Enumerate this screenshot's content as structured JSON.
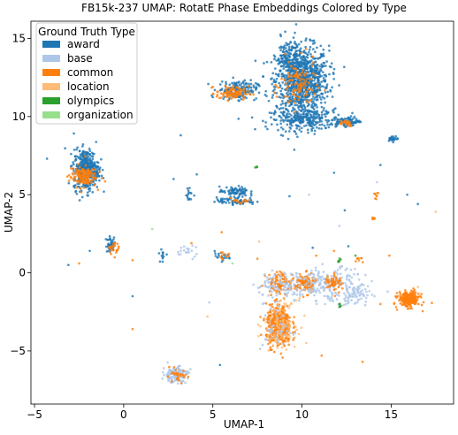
{
  "chart_data": {
    "type": "scatter",
    "title": "FB15k-237 UMAP: RotatE Phase Embeddings Colored by Type",
    "xlabel": "UMAP-1",
    "ylabel": "UMAP-2",
    "xlim": [
      -5.2,
      18.5
    ],
    "ylim": [
      -8.4,
      16.1
    ],
    "xticks": [
      -5,
      0,
      5,
      10,
      15
    ],
    "yticks": [
      -5,
      0,
      5,
      10,
      15
    ],
    "grid": false,
    "legend": {
      "title": "Ground Truth Type",
      "placement": "top-left",
      "entries": [
        "award",
        "base",
        "common",
        "location",
        "olympics",
        "organization"
      ]
    },
    "colors": {
      "award": "#1f77b4",
      "base": "#aec7e8",
      "common": "#ff7f0e",
      "location": "#ffbb78",
      "olympics": "#2ca02c",
      "organization": "#98df8a"
    },
    "clusters": [
      {
        "name": "award",
        "cx": 10.0,
        "cy": 12.3,
        "sx": 0.75,
        "sy": 1.1,
        "n": 900
      },
      {
        "name": "award",
        "cx": 10.2,
        "cy": 9.8,
        "sx": 1.0,
        "sy": 0.35,
        "n": 260
      },
      {
        "name": "award",
        "cx": 9.2,
        "cy": 13.8,
        "sx": 0.35,
        "sy": 0.6,
        "n": 110
      },
      {
        "name": "common",
        "cx": 9.8,
        "cy": 12.0,
        "sx": 0.5,
        "sy": 0.8,
        "n": 110
      },
      {
        "name": "award",
        "cx": 6.4,
        "cy": 11.7,
        "sx": 0.55,
        "sy": 0.3,
        "n": 160
      },
      {
        "name": "common",
        "cx": 6.1,
        "cy": 11.5,
        "sx": 0.45,
        "sy": 0.22,
        "n": 90
      },
      {
        "name": "award",
        "cx": 12.6,
        "cy": 9.7,
        "sx": 0.35,
        "sy": 0.15,
        "n": 70
      },
      {
        "name": "common",
        "cx": 12.4,
        "cy": 9.6,
        "sx": 0.25,
        "sy": 0.12,
        "n": 25
      },
      {
        "name": "award",
        "cx": -2.1,
        "cy": 6.6,
        "sx": 0.35,
        "sy": 0.65,
        "n": 420
      },
      {
        "name": "common",
        "cx": -2.3,
        "cy": 6.2,
        "sx": 0.38,
        "sy": 0.35,
        "n": 140
      },
      {
        "name": "award",
        "cx": 6.2,
        "cy": 5.2,
        "sx": 0.4,
        "sy": 0.15,
        "n": 70
      },
      {
        "name": "award",
        "cx": 6.3,
        "cy": 4.6,
        "sx": 0.55,
        "sy": 0.12,
        "n": 70
      },
      {
        "name": "common",
        "cx": 6.5,
        "cy": 4.6,
        "sx": 0.35,
        "sy": 0.12,
        "n": 15
      },
      {
        "name": "award",
        "cx": 15.1,
        "cy": 8.6,
        "sx": 0.15,
        "sy": 0.08,
        "n": 25
      },
      {
        "name": "award",
        "cx": 3.7,
        "cy": 5.0,
        "sx": 0.1,
        "sy": 0.22,
        "n": 15
      },
      {
        "name": "award",
        "cx": -0.7,
        "cy": 1.8,
        "sx": 0.15,
        "sy": 0.25,
        "n": 45
      },
      {
        "name": "common",
        "cx": -0.6,
        "cy": 1.6,
        "sx": 0.15,
        "sy": 0.2,
        "n": 25
      },
      {
        "name": "common",
        "cx": 8.7,
        "cy": -3.4,
        "sx": 0.35,
        "sy": 0.65,
        "n": 420
      },
      {
        "name": "location",
        "cx": 8.8,
        "cy": -3.2,
        "sx": 0.45,
        "sy": 0.75,
        "n": 110
      },
      {
        "name": "base",
        "cx": 8.6,
        "cy": -3.5,
        "sx": 0.45,
        "sy": 0.8,
        "n": 40
      },
      {
        "name": "common",
        "cx": 16.0,
        "cy": -1.7,
        "sx": 0.3,
        "sy": 0.25,
        "n": 230
      },
      {
        "name": "common",
        "cx": 10.2,
        "cy": -0.7,
        "sx": 0.3,
        "sy": 0.3,
        "n": 120
      },
      {
        "name": "base",
        "cx": 11.6,
        "cy": -0.8,
        "sx": 0.9,
        "sy": 0.55,
        "n": 190
      },
      {
        "name": "common",
        "cx": 8.8,
        "cy": -0.6,
        "sx": 0.4,
        "sy": 0.35,
        "n": 90
      },
      {
        "name": "base",
        "cx": 9.0,
        "cy": -0.8,
        "sx": 0.8,
        "sy": 0.4,
        "n": 110
      },
      {
        "name": "common",
        "cx": 11.8,
        "cy": -0.6,
        "sx": 0.25,
        "sy": 0.3,
        "n": 50
      },
      {
        "name": "base",
        "cx": 13.0,
        "cy": -1.4,
        "sx": 0.45,
        "sy": 0.35,
        "n": 60
      },
      {
        "name": "base",
        "cx": 2.9,
        "cy": -6.5,
        "sx": 0.35,
        "sy": 0.25,
        "n": 140
      },
      {
        "name": "common",
        "cx": 3.0,
        "cy": -6.6,
        "sx": 0.3,
        "sy": 0.2,
        "n": 30
      },
      {
        "name": "common",
        "cx": 13.2,
        "cy": 0.8,
        "sx": 0.1,
        "sy": 0.1,
        "n": 8
      },
      {
        "name": "award",
        "cx": 5.4,
        "cy": 1.0,
        "sx": 0.3,
        "sy": 0.15,
        "n": 20
      },
      {
        "name": "common",
        "cx": 5.6,
        "cy": 1.1,
        "sx": 0.15,
        "sy": 0.1,
        "n": 10
      },
      {
        "name": "base",
        "cx": 3.5,
        "cy": 1.4,
        "sx": 0.35,
        "sy": 0.2,
        "n": 20
      },
      {
        "name": "olympics",
        "cx": 12.1,
        "cy": 0.7,
        "sx": 0.05,
        "sy": 0.1,
        "n": 6
      },
      {
        "name": "olympics",
        "cx": 12.1,
        "cy": -2.1,
        "sx": 0.05,
        "sy": 0.15,
        "n": 5
      },
      {
        "name": "olympics",
        "cx": 7.4,
        "cy": 6.7,
        "sx": 0.05,
        "sy": 0.1,
        "n": 4
      },
      {
        "name": "common",
        "cx": 14.2,
        "cy": 5.0,
        "sx": 0.1,
        "sy": 0.15,
        "n": 8
      },
      {
        "name": "common",
        "cx": 14.0,
        "cy": 3.5,
        "sx": 0.08,
        "sy": 0.1,
        "n": 6
      },
      {
        "name": "award",
        "cx": 2.2,
        "cy": 1.2,
        "sx": 0.1,
        "sy": 0.2,
        "n": 12
      }
    ],
    "outliers": [
      {
        "name": "award",
        "x": -4.3,
        "y": 7.3
      },
      {
        "name": "award",
        "x": 3.2,
        "y": 8.8
      },
      {
        "name": "award",
        "x": 2.8,
        "y": 6.0
      },
      {
        "name": "award",
        "x": 4.1,
        "y": 6.3
      },
      {
        "name": "award",
        "x": 11.8,
        "y": 6.4
      },
      {
        "name": "award",
        "x": 14.4,
        "y": 6.9
      },
      {
        "name": "award",
        "x": 15.9,
        "y": 5.0
      },
      {
        "name": "award",
        "x": 16.5,
        "y": 4.4
      },
      {
        "name": "award",
        "x": 12.4,
        "y": 4.0
      },
      {
        "name": "award",
        "x": 9.3,
        "y": 4.9
      },
      {
        "name": "award",
        "x": -1.9,
        "y": 1.4
      },
      {
        "name": "award",
        "x": -3.1,
        "y": 0.5
      },
      {
        "name": "award",
        "x": 0.5,
        "y": -1.5
      },
      {
        "name": "award",
        "x": 5.4,
        "y": -5.9
      },
      {
        "name": "award",
        "x": 12.6,
        "y": 1.7
      },
      {
        "name": "award",
        "x": 10.6,
        "y": 1.6
      },
      {
        "name": "common",
        "x": -2.5,
        "y": 0.6
      },
      {
        "name": "common",
        "x": 0.5,
        "y": 0.8
      },
      {
        "name": "common",
        "x": 0.5,
        "y": -3.6
      },
      {
        "name": "common",
        "x": 3.8,
        "y": 1.9
      },
      {
        "name": "common",
        "x": 5.5,
        "y": 2.6
      },
      {
        "name": "common",
        "x": 7.5,
        "y": 0.9
      },
      {
        "name": "common",
        "x": 10.8,
        "y": 1.1
      },
      {
        "name": "common",
        "x": 11.1,
        "y": -5.3
      },
      {
        "name": "common",
        "x": 13.4,
        "y": -5.7
      },
      {
        "name": "common",
        "x": 14.9,
        "y": 1.1
      },
      {
        "name": "common",
        "x": 11.8,
        "y": 1.4
      },
      {
        "name": "common",
        "x": 14.4,
        "y": -2.0
      },
      {
        "name": "location",
        "x": 17.5,
        "y": 3.9
      },
      {
        "name": "location",
        "x": 4.7,
        "y": -2.8
      },
      {
        "name": "location",
        "x": 7.6,
        "y": 2.0
      },
      {
        "name": "location",
        "x": 16.5,
        "y": -0.9
      },
      {
        "name": "base",
        "x": 10.4,
        "y": 5.0
      },
      {
        "name": "base",
        "x": 12.1,
        "y": 3.0
      },
      {
        "name": "base",
        "x": 14.2,
        "y": 5.8
      },
      {
        "name": "base",
        "x": 7.8,
        "y": -2.0
      },
      {
        "name": "base",
        "x": 4.8,
        "y": -1.9
      },
      {
        "name": "base",
        "x": 14.8,
        "y": -1.2
      },
      {
        "name": "organization",
        "x": 6.1,
        "y": 0.6
      },
      {
        "name": "organization",
        "x": 1.6,
        "y": 2.8
      },
      {
        "name": "olympics",
        "x": 13.0,
        "y": 1.1
      }
    ]
  }
}
